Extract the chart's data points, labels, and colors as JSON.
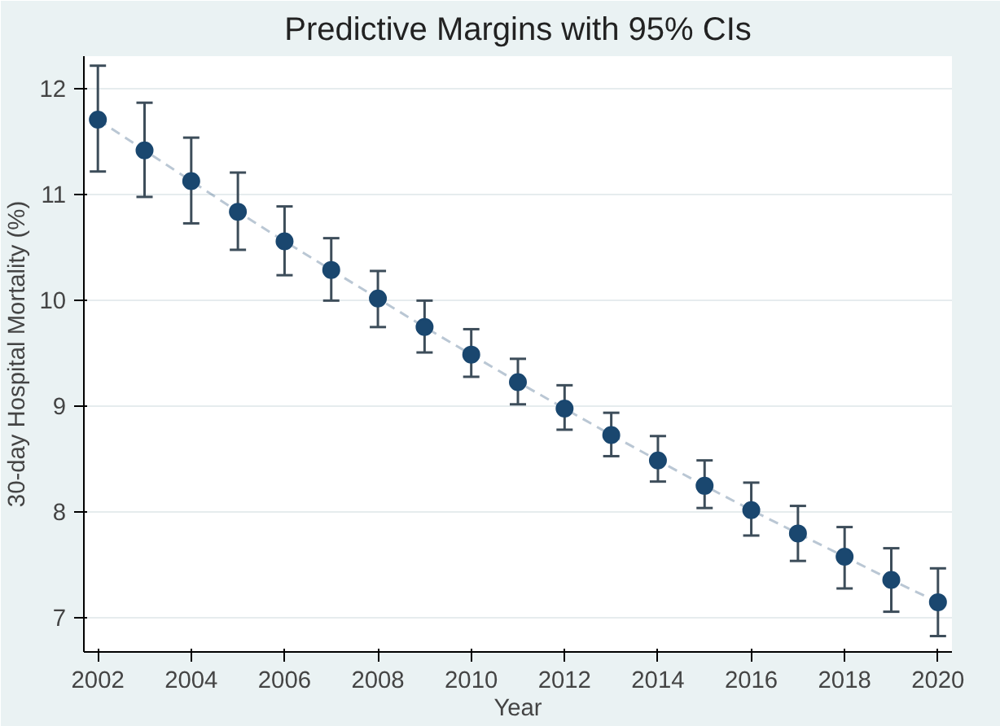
{
  "chart_data": {
    "type": "line",
    "title": "Predictive Margins with 95% CIs",
    "xlabel": "Year",
    "ylabel": "30-day Hospital Mortality (%)",
    "x": [
      2002,
      2003,
      2004,
      2005,
      2006,
      2007,
      2008,
      2009,
      2010,
      2011,
      2012,
      2013,
      2014,
      2015,
      2016,
      2017,
      2018,
      2019,
      2020
    ],
    "series": [
      {
        "color": "#1a476f",
        "values": [
          11.7,
          11.41,
          11.12,
          10.83,
          10.55,
          10.28,
          10.01,
          9.74,
          9.48,
          9.22,
          8.97,
          8.72,
          8.48,
          8.24,
          8.01,
          7.79,
          7.57,
          7.35,
          7.14
        ],
        "errors": [
          [
            11.21,
            12.21
          ],
          [
            10.97,
            11.86
          ],
          [
            10.72,
            11.53
          ],
          [
            10.47,
            11.2
          ],
          [
            10.23,
            10.88
          ],
          [
            9.99,
            10.58
          ],
          [
            9.74,
            10.27
          ],
          [
            9.5,
            9.99
          ],
          [
            9.27,
            9.72
          ],
          [
            9.01,
            9.44
          ],
          [
            8.77,
            9.19
          ],
          [
            8.52,
            8.93
          ],
          [
            8.28,
            8.71
          ],
          [
            8.03,
            8.48
          ],
          [
            7.77,
            8.27
          ],
          [
            7.53,
            8.05
          ],
          [
            7.27,
            7.85
          ],
          [
            7.05,
            7.65
          ],
          [
            6.82,
            7.46
          ]
        ]
      }
    ],
    "xlim": [
      2001.7,
      2020.3
    ],
    "ylim": [
      6.67,
      12.3
    ],
    "xticks": [
      2002,
      2004,
      2006,
      2008,
      2010,
      2012,
      2014,
      2016,
      2018,
      2020
    ],
    "yticks": [
      7,
      8,
      9,
      10,
      11,
      12
    ],
    "grid": "y",
    "marker": "circle",
    "line_style": "dashed"
  }
}
